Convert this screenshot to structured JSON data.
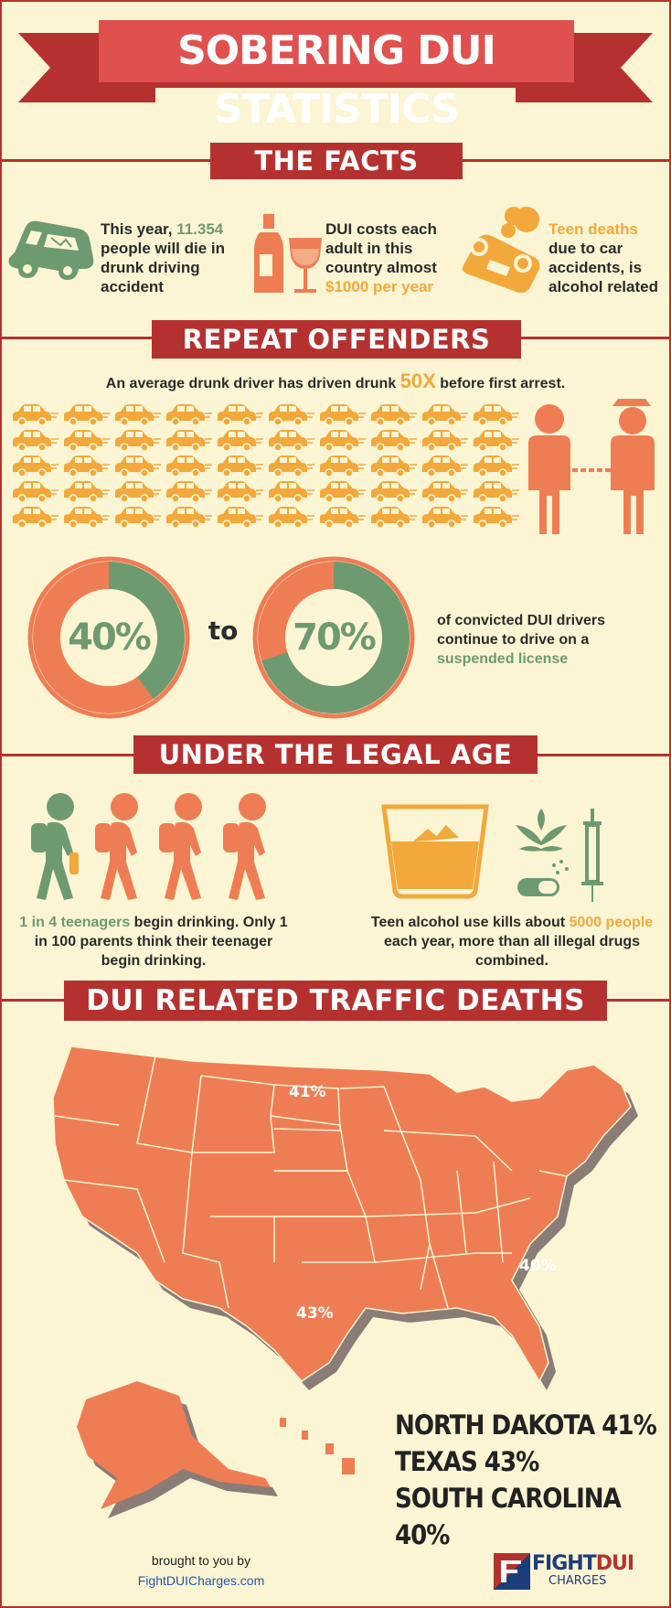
{
  "title": "SOBERING DUI STATISTICS",
  "sections": {
    "facts": "THE FACTS",
    "repeat": "REPEAT OFFENDERS",
    "legal": "UNDER THE LEGAL AGE",
    "traffic": "DUI RELATED TRAFFIC DEATHS"
  },
  "facts": {
    "f1_a": "This year, ",
    "f1_num": "11.354",
    "f1_b": "people will die in drunk driving accident",
    "f2_a": "DUI costs each adult in this country almost",
    "f2_num": "$1000 per year",
    "f3_hl": "Teen deaths",
    "f3_b": "due to car accidents, is alcohol related"
  },
  "repeat": {
    "line_a": "An average drunk driver has driven drunk ",
    "line_hl": "50X",
    "line_b": " before first arrest.",
    "car_count": 50,
    "donut1": {
      "label": "40%",
      "fraction": 0.4
    },
    "donut2": {
      "label": "70%",
      "fraction": 0.7
    },
    "to": "to",
    "conv_a": "of convicted DUI drivers continue to drive on a",
    "conv_hl": "suspended license"
  },
  "legal": {
    "t1_hl": "1 in 4 teenagers",
    "t1_a": " begin drinking.",
    "t1_b": "Only 1 in 100 parents think their teenager begin drinking.",
    "t2_a": "Teen alcohol use kills about ",
    "t2_hl": "5000 people",
    "t2_b": " each year, more than all illegal drugs combined."
  },
  "map": {
    "nd": "41%",
    "tx": "43%",
    "sc": "40%",
    "stats": [
      "NORTH DAKOTA 41%",
      "TEXAS 43%",
      "SOUTH CAROLINA 40%"
    ]
  },
  "footer": {
    "brought": "brought to you by",
    "site": "FightDUICharges.com",
    "logo_a": "FIGHT",
    "logo_b": "DUI",
    "logo_c": "CHARGES"
  },
  "colors": {
    "red": "#b5312f",
    "orange": "#ef7d53",
    "green": "#6e9a72",
    "yellow": "#f2a83a",
    "bg": "#fbf5d4"
  }
}
